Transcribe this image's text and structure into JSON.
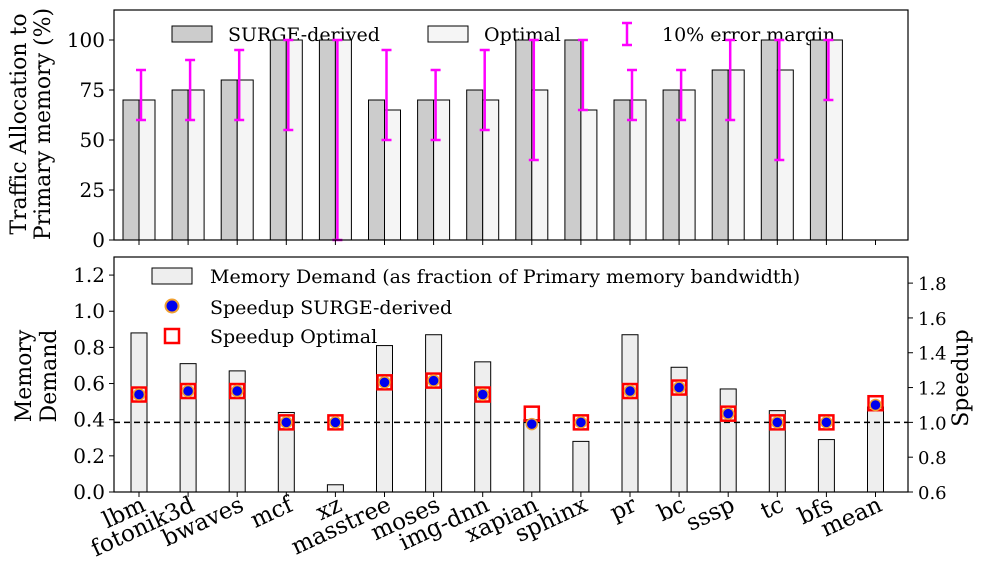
{
  "chart_data": [
    {
      "type": "bar",
      "ylabel_line1": "Traffic Allocation to",
      "ylabel_line2": "Primary memory (%)",
      "ylim": [
        0,
        115
      ],
      "yticks": [
        0,
        25,
        50,
        75,
        100
      ],
      "categories": [
        "lbm",
        "fotonik3d",
        "bwaves",
        "mcf",
        "xz",
        "masstree",
        "moses",
        "img-dnn",
        "xapian",
        "sphinx",
        "pr",
        "bc",
        "sssp",
        "tc",
        "bfs",
        "mean"
      ],
      "series": [
        {
          "name": "SURGE-derived",
          "color": "#cccccc",
          "values": [
            70,
            75,
            80,
            100,
            100,
            70,
            70,
            75,
            100,
            100,
            70,
            75,
            85,
            100,
            100,
            0
          ]
        },
        {
          "name": "Optimal",
          "color": "#f5f5f5",
          "values": [
            70,
            75,
            80,
            100,
            100,
            65,
            70,
            70,
            75,
            65,
            70,
            75,
            85,
            85,
            100,
            0
          ]
        }
      ],
      "error_bars": {
        "name": "10% error margin",
        "color": "#ff00ff",
        "ranges": [
          [
            60,
            85
          ],
          [
            60,
            90
          ],
          [
            60,
            95
          ],
          [
            55,
            100
          ],
          [
            0,
            100
          ],
          [
            50,
            95
          ],
          [
            50,
            85
          ],
          [
            55,
            95
          ],
          [
            40,
            100
          ],
          [
            65,
            100
          ],
          [
            60,
            85
          ],
          [
            60,
            85
          ],
          [
            60,
            100
          ],
          [
            40,
            100
          ],
          [
            70,
            100
          ],
          null
        ]
      },
      "legend": [
        "SURGE-derived",
        "Optimal",
        "10% error margin"
      ],
      "legend_position": "top"
    },
    {
      "type": "bar+scatter",
      "ylabel_left_line1": "Memory",
      "ylabel_left_line2": "Demand",
      "ylabel_right": "Speedup",
      "ylim_left": [
        0,
        1.3
      ],
      "yticks_left": [
        "0.0",
        "0.2",
        "0.4",
        "0.6",
        "0.8",
        "1.0",
        "1.2"
      ],
      "ylim_right": [
        0.6,
        1.95
      ],
      "yticks_right": [
        "0.6",
        "0.8",
        "1.0",
        "1.2",
        "1.4",
        "1.6",
        "1.8"
      ],
      "reference_line": 1.0,
      "categories": [
        "lbm",
        "fotonik3d",
        "bwaves",
        "mcf",
        "xz",
        "masstree",
        "moses",
        "img-dnn",
        "xapian",
        "sphinx",
        "pr",
        "bc",
        "sssp",
        "tc",
        "bfs",
        "mean"
      ],
      "memory_demand": {
        "name": "Memory Demand (as fraction of Primary memory bandwidth)",
        "color": "#eeeeee",
        "values": [
          0.88,
          0.71,
          0.67,
          0.44,
          0.04,
          0.81,
          0.87,
          0.72,
          0.4,
          0.28,
          0.87,
          0.69,
          0.57,
          0.45,
          0.29,
          0.47
        ]
      },
      "speedup_surge": {
        "name": "Speedup SURGE-derived",
        "values": [
          1.16,
          1.18,
          1.18,
          1.0,
          1.0,
          1.23,
          1.24,
          1.16,
          0.99,
          1.0,
          1.18,
          1.2,
          1.05,
          1.0,
          1.0,
          1.1
        ]
      },
      "speedup_optimal": {
        "name": "Speedup Optimal",
        "values": [
          1.16,
          1.18,
          1.18,
          1.0,
          1.0,
          1.23,
          1.24,
          1.16,
          1.05,
          1.0,
          1.18,
          1.2,
          1.05,
          1.0,
          1.0,
          1.11
        ]
      },
      "legend": [
        "Memory Demand (as fraction of Primary memory bandwidth)",
        "Speedup SURGE-derived",
        "Speedup Optimal"
      ],
      "legend_position": "top-left"
    }
  ]
}
